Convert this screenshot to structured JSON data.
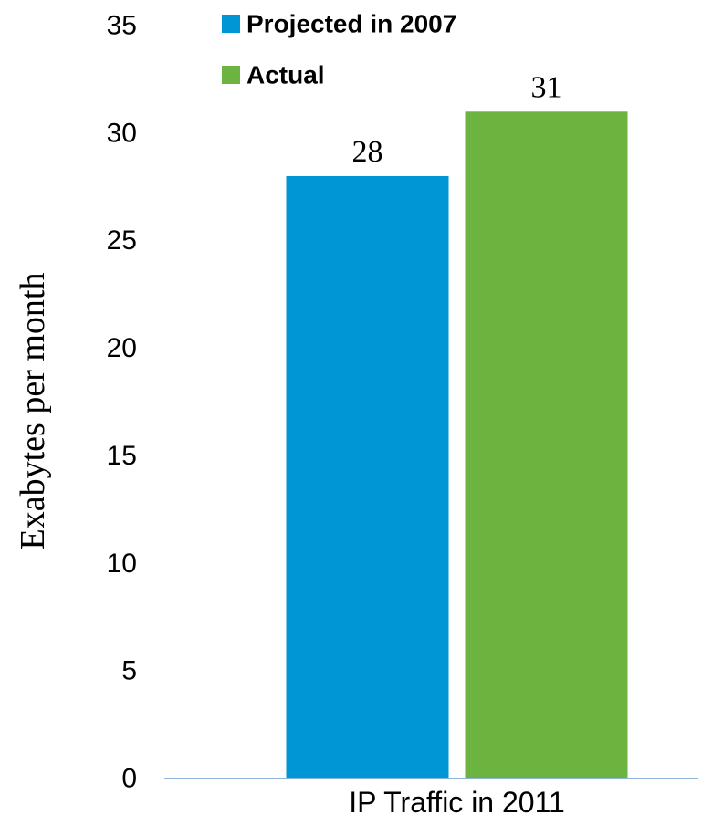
{
  "chart_data": {
    "type": "bar",
    "title": "",
    "xlabel": "",
    "ylabel": "Exabytes per month",
    "categories": [
      "IP Traffic in 2011"
    ],
    "series": [
      {
        "name": "Projected in 2007",
        "values": [
          28
        ],
        "label": "28",
        "color": "#0096D6"
      },
      {
        "name": "Actual",
        "values": [
          31
        ],
        "label": "31",
        "color": "#6DB33F"
      }
    ],
    "ylim": [
      0,
      35
    ],
    "yticks": [
      0,
      5,
      10,
      15,
      20,
      25,
      30,
      35
    ],
    "grid": false,
    "legend": "top"
  }
}
